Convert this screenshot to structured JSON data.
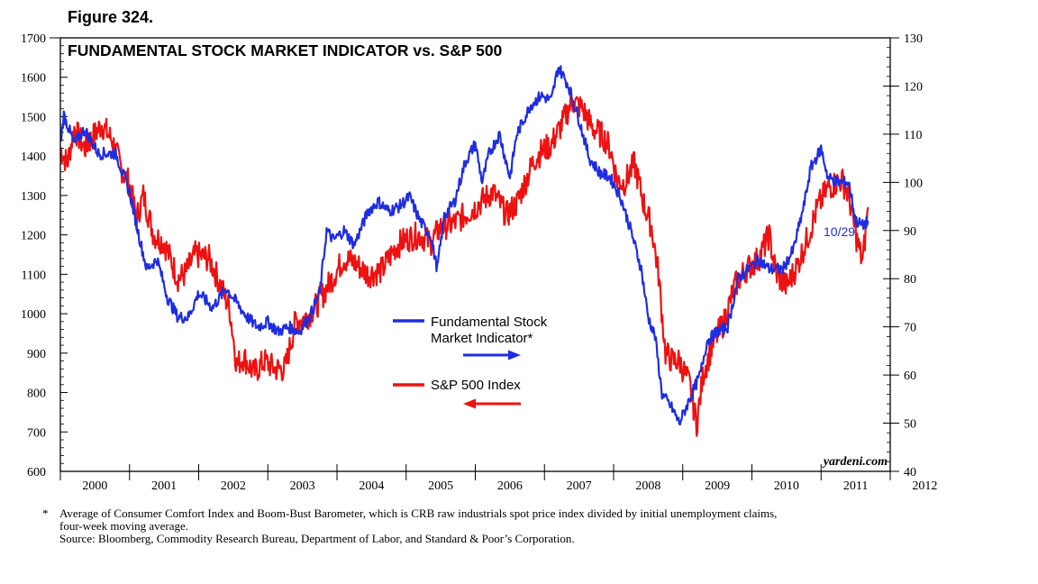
{
  "figure_label": "Figure 324.",
  "chart_data": {
    "type": "line",
    "title": "FUNDAMENTAL STOCK MARKET INDICATOR vs. S&P 500",
    "watermark": "yardeni.com",
    "x_range": [
      2000,
      2012
    ],
    "x_tick_labels": [
      "2000",
      "2001",
      "2002",
      "2003",
      "2004",
      "2005",
      "2006",
      "2007",
      "2008",
      "2009",
      "2010",
      "2011",
      "2012"
    ],
    "left_axis": {
      "min": 600,
      "max": 1700,
      "ticks": [
        600,
        700,
        800,
        900,
        1000,
        1100,
        1200,
        1300,
        1400,
        1500,
        1600,
        1700
      ]
    },
    "right_axis": {
      "min": 40,
      "max": 130,
      "ticks": [
        40,
        50,
        60,
        70,
        80,
        90,
        100,
        110,
        120,
        130
      ]
    },
    "last_date_label": "10/29",
    "legend": [
      {
        "name": "Fundamental Stock",
        "name2": "Market Indicator*",
        "axis": "right",
        "color": "#1f2de0"
      },
      {
        "name": "S&P 500 Index",
        "axis": "left",
        "color": "#ee1111"
      }
    ],
    "series": [
      {
        "name": "Fundamental Stock Market Indicator*",
        "axis": "right",
        "color": "#1f2de0",
        "points": [
          [
            2000.0,
            108
          ],
          [
            2000.05,
            114
          ],
          [
            2000.2,
            108
          ],
          [
            2000.35,
            111
          ],
          [
            2000.55,
            106
          ],
          [
            2000.8,
            106
          ],
          [
            2001.0,
            98
          ],
          [
            2001.15,
            88
          ],
          [
            2001.25,
            82
          ],
          [
            2001.4,
            84
          ],
          [
            2001.55,
            76
          ],
          [
            2001.7,
            72
          ],
          [
            2001.85,
            72
          ],
          [
            2002.0,
            77
          ],
          [
            2002.2,
            74
          ],
          [
            2002.4,
            78
          ],
          [
            2002.55,
            75
          ],
          [
            2002.7,
            72
          ],
          [
            2002.85,
            70
          ],
          [
            2003.0,
            71
          ],
          [
            2003.15,
            69
          ],
          [
            2003.3,
            70
          ],
          [
            2003.45,
            69
          ],
          [
            2003.6,
            72
          ],
          [
            2003.75,
            77
          ],
          [
            2003.85,
            90
          ],
          [
            2003.95,
            88
          ],
          [
            2004.1,
            90
          ],
          [
            2004.25,
            87
          ],
          [
            2004.45,
            94
          ],
          [
            2004.6,
            96
          ],
          [
            2004.75,
            94
          ],
          [
            2004.9,
            95
          ],
          [
            2005.05,
            97
          ],
          [
            2005.2,
            92
          ],
          [
            2005.35,
            89
          ],
          [
            2005.45,
            82
          ],
          [
            2005.55,
            93
          ],
          [
            2005.7,
            96
          ],
          [
            2005.85,
            104
          ],
          [
            2006.0,
            108
          ],
          [
            2006.1,
            100
          ],
          [
            2006.2,
            106
          ],
          [
            2006.35,
            110
          ],
          [
            2006.5,
            101
          ],
          [
            2006.6,
            110
          ],
          [
            2006.8,
            116
          ],
          [
            2006.95,
            118
          ],
          [
            2007.1,
            117
          ],
          [
            2007.2,
            124
          ],
          [
            2007.35,
            120
          ],
          [
            2007.5,
            113
          ],
          [
            2007.65,
            105
          ],
          [
            2007.8,
            102
          ],
          [
            2007.95,
            101
          ],
          [
            2008.1,
            97
          ],
          [
            2008.25,
            90
          ],
          [
            2008.4,
            82
          ],
          [
            2008.5,
            72
          ],
          [
            2008.6,
            68
          ],
          [
            2008.7,
            56
          ],
          [
            2008.85,
            53
          ],
          [
            2008.95,
            50
          ],
          [
            2009.1,
            55
          ],
          [
            2009.25,
            60
          ],
          [
            2009.35,
            67
          ],
          [
            2009.5,
            69
          ],
          [
            2009.65,
            70
          ],
          [
            2009.8,
            80
          ],
          [
            2009.95,
            82
          ],
          [
            2010.1,
            84
          ],
          [
            2010.25,
            82
          ],
          [
            2010.45,
            82
          ],
          [
            2010.6,
            86
          ],
          [
            2010.75,
            95
          ],
          [
            2010.85,
            103
          ],
          [
            2011.0,
            107
          ],
          [
            2011.1,
            101
          ],
          [
            2011.25,
            100
          ],
          [
            2011.4,
            100
          ],
          [
            2011.5,
            92
          ],
          [
            2011.6,
            91
          ],
          [
            2011.68,
            92
          ]
        ]
      },
      {
        "name": "S&P 500 Index",
        "axis": "left",
        "color": "#ee1111",
        "points": [
          [
            2000.0,
            1420
          ],
          [
            2000.1,
            1380
          ],
          [
            2000.2,
            1470
          ],
          [
            2000.35,
            1420
          ],
          [
            2000.6,
            1480
          ],
          [
            2000.75,
            1440
          ],
          [
            2000.9,
            1360
          ],
          [
            2001.0,
            1330
          ],
          [
            2001.1,
            1240
          ],
          [
            2001.2,
            1300
          ],
          [
            2001.35,
            1200
          ],
          [
            2001.5,
            1180
          ],
          [
            2001.7,
            1090
          ],
          [
            2001.8,
            1100
          ],
          [
            2001.95,
            1150
          ],
          [
            2002.15,
            1140
          ],
          [
            2002.3,
            1080
          ],
          [
            2002.45,
            1010
          ],
          [
            2002.55,
            870
          ],
          [
            2002.65,
            890
          ],
          [
            2002.8,
            850
          ],
          [
            2002.95,
            880
          ],
          [
            2003.1,
            860
          ],
          [
            2003.25,
            860
          ],
          [
            2003.4,
            980
          ],
          [
            2003.55,
            990
          ],
          [
            2003.7,
            1020
          ],
          [
            2003.9,
            1080
          ],
          [
            2004.1,
            1140
          ],
          [
            2004.25,
            1130
          ],
          [
            2004.45,
            1100
          ],
          [
            2004.65,
            1110
          ],
          [
            2004.85,
            1170
          ],
          [
            2005.0,
            1190
          ],
          [
            2005.2,
            1200
          ],
          [
            2005.35,
            1180
          ],
          [
            2005.5,
            1220
          ],
          [
            2005.7,
            1230
          ],
          [
            2005.85,
            1250
          ],
          [
            2006.0,
            1270
          ],
          [
            2006.25,
            1310
          ],
          [
            2006.45,
            1250
          ],
          [
            2006.6,
            1280
          ],
          [
            2006.85,
            1390
          ],
          [
            2006.95,
            1410
          ],
          [
            2007.1,
            1430
          ],
          [
            2007.25,
            1480
          ],
          [
            2007.4,
            1540
          ],
          [
            2007.55,
            1520
          ],
          [
            2007.7,
            1470
          ],
          [
            2007.85,
            1450
          ],
          [
            2007.95,
            1420
          ],
          [
            2008.05,
            1340
          ],
          [
            2008.15,
            1330
          ],
          [
            2008.3,
            1380
          ],
          [
            2008.45,
            1270
          ],
          [
            2008.55,
            1220
          ],
          [
            2008.65,
            1100
          ],
          [
            2008.75,
            900
          ],
          [
            2008.85,
            880
          ],
          [
            2008.95,
            880
          ],
          [
            2009.1,
            820
          ],
          [
            2009.2,
            720
          ],
          [
            2009.3,
            850
          ],
          [
            2009.45,
            930
          ],
          [
            2009.6,
            980
          ],
          [
            2009.75,
            1070
          ],
          [
            2009.9,
            1110
          ],
          [
            2010.1,
            1140
          ],
          [
            2010.25,
            1200
          ],
          [
            2010.35,
            1100
          ],
          [
            2010.5,
            1070
          ],
          [
            2010.65,
            1120
          ],
          [
            2010.8,
            1190
          ],
          [
            2010.95,
            1270
          ],
          [
            2011.1,
            1320
          ],
          [
            2011.3,
            1340
          ],
          [
            2011.4,
            1300
          ],
          [
            2011.5,
            1200
          ],
          [
            2011.6,
            1130
          ],
          [
            2011.68,
            1270
          ]
        ]
      }
    ]
  },
  "footnote": {
    "star": "*",
    "line1": "Average of Consumer Comfort Index and Boom-Bust Barometer, which is CRB raw industrials spot price index divided by initial unemployment claims,",
    "line2": "four-week moving average.",
    "line3": "Source: Bloomberg, Commodity Research Bureau, Department of Labor, and Standard & Poor’s Corporation."
  }
}
